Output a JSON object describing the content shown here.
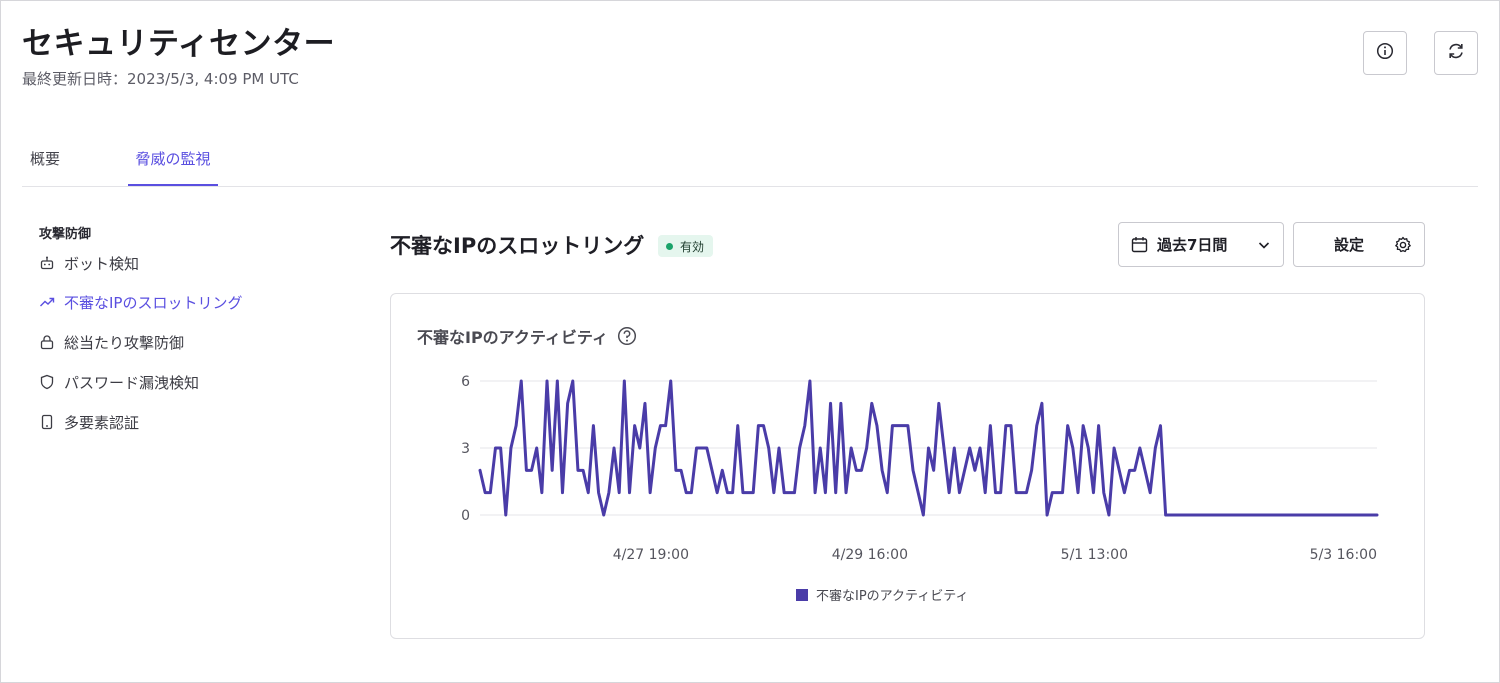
{
  "header": {
    "title": "セキュリティセンター",
    "updated": "最終更新日時：2023/5/3, 4:09 PM UTC",
    "info_icon": "info-icon",
    "refresh_icon": "refresh-icon"
  },
  "tabs": [
    {
      "label": "概要",
      "active": false
    },
    {
      "label": "脅威の監視",
      "active": true
    }
  ],
  "sidebar": {
    "heading": "攻撃防御",
    "items": [
      {
        "label": "ボット検知",
        "icon": "robot-icon",
        "active": false
      },
      {
        "label": "不審なIPのスロットリング",
        "icon": "trending-up-icon",
        "active": true
      },
      {
        "label": "総当たり攻撃防御",
        "icon": "lock-icon",
        "active": false
      },
      {
        "label": "パスワード漏洩検知",
        "icon": "shield-icon",
        "active": false
      },
      {
        "label": "多要素認証",
        "icon": "phone-icon",
        "active": false
      }
    ]
  },
  "main": {
    "title": "不審なIPのスロットリング",
    "status_badge": "有効",
    "range_label": "過去7日間",
    "settings_label": "設定"
  },
  "card": {
    "title": "不審なIPのアクティビティ"
  },
  "colors": {
    "accent": "#5a4fe0",
    "series": "#4a3ca8",
    "badge_bg": "#e5f6ee",
    "badge_dot": "#1aa36a"
  },
  "chart_data": {
    "type": "line",
    "title": "不審なIPのアクティビティ",
    "xlabel": "",
    "ylabel": "",
    "ylim": [
      0,
      6
    ],
    "yticks": [
      0,
      3,
      6
    ],
    "x_tick_labels": [
      "4/27 19:00",
      "4/29 16:00",
      "5/1 13:00",
      "5/3 16:00"
    ],
    "grid": true,
    "legend": "bottom-center",
    "series": [
      {
        "name": "不審なIPのアクティビティ",
        "values": [
          2,
          1,
          1,
          3,
          3,
          0,
          3,
          4,
          6,
          2,
          2,
          3,
          1,
          6,
          2,
          6,
          1,
          5,
          6,
          2,
          2,
          1,
          4,
          1,
          0,
          1,
          3,
          1,
          6,
          1,
          4,
          3,
          5,
          1,
          3,
          4,
          4,
          6,
          2,
          2,
          1,
          1,
          3,
          3,
          3,
          2,
          1,
          2,
          1,
          1,
          4,
          1,
          1,
          1,
          4,
          4,
          3,
          1,
          3,
          1,
          1,
          1,
          3,
          4,
          6,
          1,
          3,
          1,
          5,
          1,
          5,
          1,
          3,
          2,
          2,
          3,
          5,
          4,
          2,
          1,
          4,
          4,
          4,
          4,
          2,
          1,
          0,
          3,
          2,
          5,
          3,
          1,
          3,
          1,
          2,
          3,
          2,
          3,
          1,
          4,
          1,
          1,
          4,
          4,
          1,
          1,
          1,
          2,
          4,
          5,
          0,
          1,
          1,
          1,
          4,
          3,
          1,
          4,
          3,
          1,
          4,
          1,
          0,
          3,
          2,
          1,
          2,
          2,
          3,
          2,
          1,
          3,
          4,
          0,
          0,
          0,
          0,
          0,
          0,
          0,
          0,
          0,
          0,
          0,
          0,
          0,
          0,
          0,
          0,
          0,
          0,
          0,
          0,
          0,
          0,
          0,
          0,
          0,
          0,
          0,
          0,
          0,
          0,
          0,
          0,
          0,
          0,
          0,
          0,
          0,
          0,
          0,
          0,
          0,
          0
        ]
      }
    ]
  }
}
